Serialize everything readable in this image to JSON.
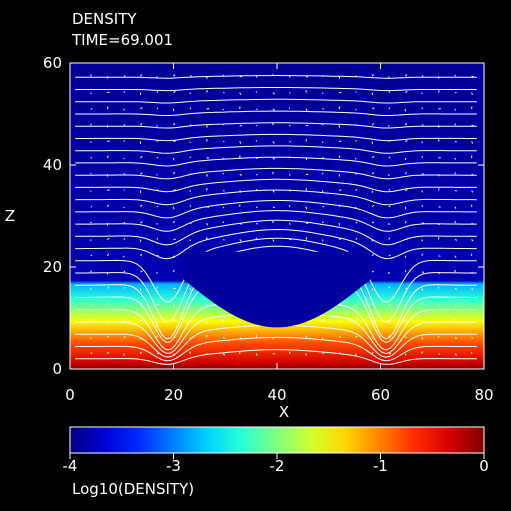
{
  "chart_data": {
    "type": "heatmap",
    "title": "DENSITY",
    "subtitle": "TIME=69.001",
    "xlabel": "X",
    "ylabel": "Z",
    "xlim": [
      0,
      80
    ],
    "ylim": [
      0,
      60
    ],
    "x_ticks": [
      0,
      20,
      40,
      60,
      80
    ],
    "y_ticks": [
      0,
      20,
      40,
      60
    ],
    "x_tick_labels": [
      "0",
      "20",
      "40",
      "60",
      "80"
    ],
    "y_tick_labels": [
      "0",
      "20",
      "40",
      "60"
    ],
    "colorbar": {
      "label": "Log10(DENSITY)",
      "range": [
        -4,
        0
      ],
      "ticks": [
        -4,
        -3,
        -2,
        -1,
        0
      ],
      "tick_labels": [
        "-4",
        "-3",
        "-2",
        "-1",
        "0"
      ],
      "colormap": "jet"
    },
    "overlays": [
      "magnetic field lines",
      "velocity vectors"
    ],
    "layer_boundary_z": 17,
    "dip_centers_x": [
      19,
      61
    ],
    "dip_depth_z": 12,
    "arch_center_x": 40,
    "arch_lift_z": 6,
    "colors": {
      "background": "#000000",
      "axes": "#ffffff",
      "field_lines": "#ffffff"
    }
  }
}
